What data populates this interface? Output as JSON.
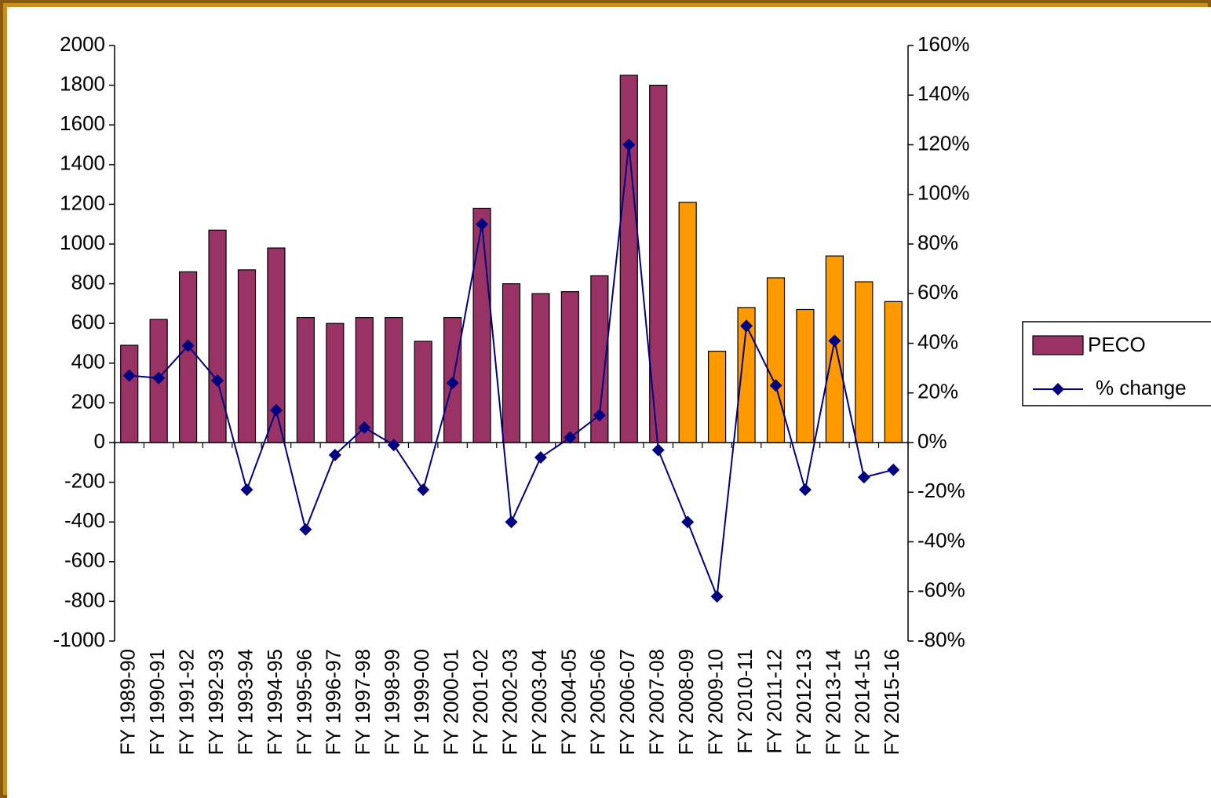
{
  "chart_data": {
    "type": "bar_line",
    "categories": [
      "FY 1989-90",
      "FY 1990-91",
      "FY 1991-92",
      "FY 1992-93",
      "FY 1993-94",
      "FY 1994-95",
      "FY 1995-96",
      "FY 1996-97",
      "FY 1997-98",
      "FY 1998-99",
      "FY 1999-00",
      "FY 2000-01",
      "FY 2001-02",
      "FY 2002-03",
      "FY 2003-04",
      "FY 2004-05",
      "FY 2005-06",
      "FY 2006-07",
      "FY 2007-08",
      "FY 2008-09",
      "FY 2009-10",
      "FY 2010-11",
      "FY 2011-12",
      "FY 2012-13",
      "FY 2013-14",
      "FY 2014-15",
      "FY 2015-16"
    ],
    "series": [
      {
        "name": "PECO",
        "color": "#993366",
        "colors": [
          "#993366",
          "#993366",
          "#993366",
          "#993366",
          "#993366",
          "#993366",
          "#993366",
          "#993366",
          "#993366",
          "#993366",
          "#993366",
          "#993366",
          "#993366",
          "#993366",
          "#993366",
          "#993366",
          "#993366",
          "#993366",
          "#993366",
          "#ff9900",
          "#ff9900",
          "#ff9900",
          "#ff9900",
          "#ff9900",
          "#ff9900",
          "#ff9900",
          "#ff9900"
        ],
        "values": [
          490,
          620,
          860,
          1070,
          870,
          980,
          630,
          600,
          630,
          630,
          510,
          630,
          1180,
          800,
          750,
          760,
          840,
          1850,
          1800,
          1210,
          460,
          680,
          830,
          670,
          940,
          810,
          710
        ]
      },
      {
        "name": "% change",
        "color": "#000080",
        "axis": "y2",
        "values": [
          27,
          26,
          39,
          25,
          -19,
          13,
          -35,
          -5,
          6,
          -1,
          -19,
          24,
          88,
          -32,
          -6,
          2,
          11,
          120,
          -3,
          -32,
          -62,
          47,
          23,
          -19,
          41,
          -14,
          -11
        ]
      }
    ],
    "ylim": [
      -1000,
      2000
    ],
    "yticks": [
      -1000,
      -800,
      -600,
      -400,
      -200,
      0,
      200,
      400,
      600,
      800,
      1000,
      1200,
      1400,
      1600,
      1800,
      2000
    ],
    "y2lim": [
      -80,
      160
    ],
    "y2ticks": [
      {
        "value": -80,
        "label": "-80%"
      },
      {
        "value": -60,
        "label": "-60%"
      },
      {
        "value": -40,
        "label": "-40%"
      },
      {
        "value": -20,
        "label": "-20%"
      },
      {
        "value": 0,
        "label": "0%"
      },
      {
        "value": 20,
        "label": "20%"
      },
      {
        "value": 40,
        "label": "40%"
      },
      {
        "value": 60,
        "label": "60%"
      },
      {
        "value": 80,
        "label": "80%"
      },
      {
        "value": 100,
        "label": "100%"
      },
      {
        "value": 120,
        "label": "120%"
      },
      {
        "value": 140,
        "label": "140%"
      },
      {
        "value": 160,
        "label": "160%"
      }
    ],
    "legend": "right"
  }
}
